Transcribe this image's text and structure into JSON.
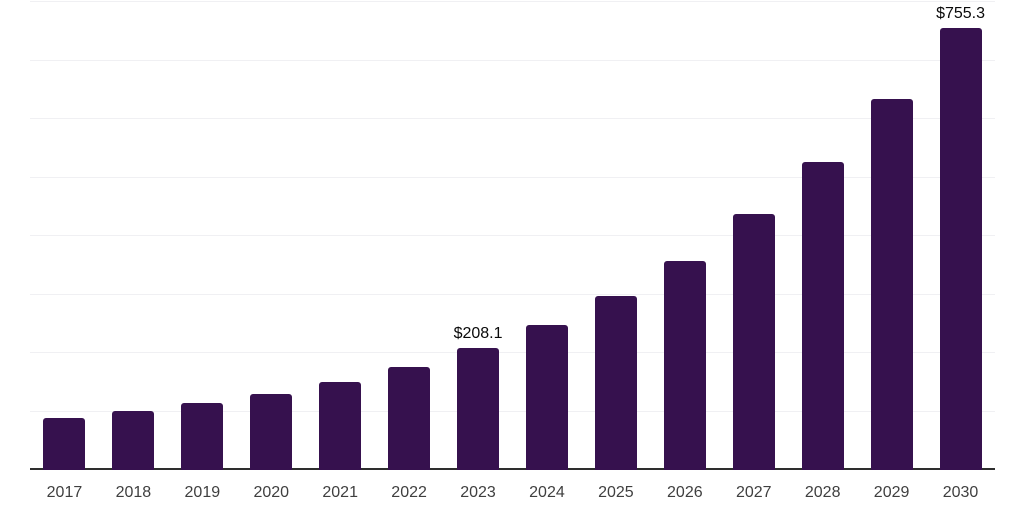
{
  "chart_data": {
    "type": "bar",
    "title": "",
    "categories": [
      "2017",
      "2018",
      "2019",
      "2020",
      "2021",
      "2022",
      "2023",
      "2024",
      "2025",
      "2026",
      "2027",
      "2028",
      "2029",
      "2030"
    ],
    "values": [
      88.4,
      101.7,
      114.0,
      130.4,
      150.4,
      175.5,
      208.1,
      247.9,
      298.0,
      357.8,
      437.6,
      526.1,
      633.8,
      755.3
    ],
    "bar_labels": [
      null,
      null,
      null,
      null,
      null,
      null,
      "$208.1",
      null,
      null,
      null,
      null,
      null,
      null,
      "$755.3"
    ],
    "ylim": [
      0,
      800
    ],
    "gridline_step": 100,
    "grid": true,
    "legend_shown": false,
    "colors": {
      "bar": "#36114e",
      "axis_line": "#2e2e2e",
      "gridline": "#f0f0f3",
      "tick_label": "#3f3f3f",
      "value_label": "#0a0a0a",
      "background": "#ffffff"
    }
  }
}
